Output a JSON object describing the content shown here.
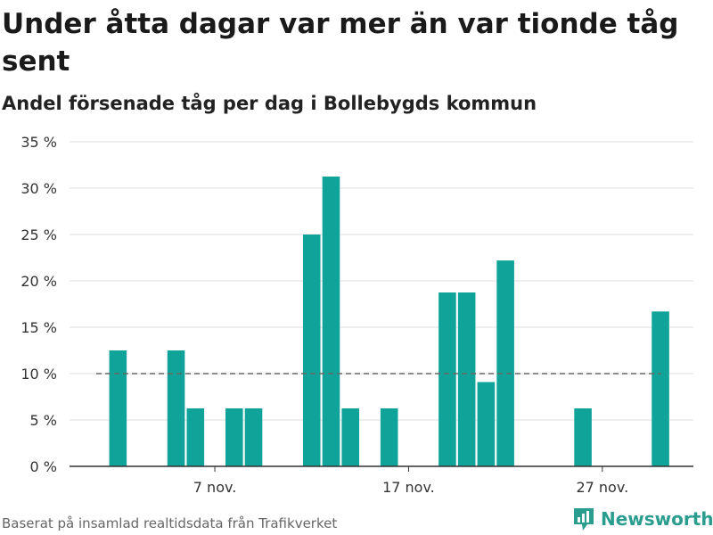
{
  "title": "Under åtta dagar var mer än var tionde tåg sent",
  "subtitle": "Andel försenade tåg per dag i Bollebygds kommun",
  "footer": "Baserat på insamlad realtidsdata från Trafikverket",
  "brand": {
    "name": "Newsworthy",
    "icon": "bar-chart-logo-icon"
  },
  "colors": {
    "bar": "#10a39a",
    "brand": "#2a9d8f",
    "grid": "#dddddd",
    "reference": "#666666"
  },
  "chart_data": {
    "type": "bar",
    "x": [
      "1 nov.",
      "2 nov.",
      "3 nov.",
      "4 nov.",
      "5 nov.",
      "6 nov.",
      "7 nov.",
      "8 nov.",
      "9 nov.",
      "10 nov.",
      "11 nov.",
      "12 nov.",
      "13 nov.",
      "14 nov.",
      "15 nov.",
      "16 nov.",
      "17 nov.",
      "18 nov.",
      "19 nov.",
      "20 nov.",
      "21 nov.",
      "22 nov.",
      "23 nov.",
      "24 nov.",
      "25 nov.",
      "26 nov.",
      "27 nov.",
      "28 nov.",
      "29 nov.",
      "30 nov."
    ],
    "values": [
      0,
      12.5,
      0,
      0,
      12.5,
      6.25,
      0,
      6.25,
      6.25,
      0,
      0,
      25,
      31.25,
      6.25,
      0,
      6.25,
      0,
      0,
      18.75,
      18.75,
      9.09,
      22.2,
      0,
      0,
      0,
      6.25,
      0,
      0,
      0,
      16.7
    ],
    "ylim": [
      0,
      35
    ],
    "yticks": [
      0,
      5,
      10,
      15,
      20,
      25,
      30,
      35
    ],
    "ytick_suffix": " %",
    "xticks": [
      "7 nov.",
      "17 nov.",
      "27 nov."
    ],
    "reference_line": 10,
    "grid": true,
    "legend": "none"
  }
}
